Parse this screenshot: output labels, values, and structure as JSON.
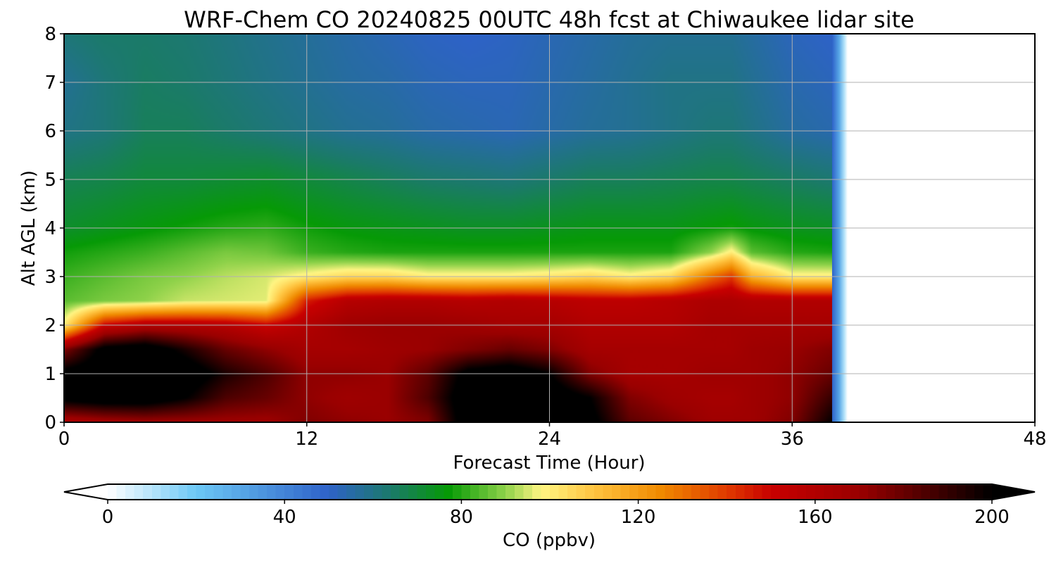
{
  "chart_data": {
    "type": "heatmap",
    "title": "WRF-Chem CO  20240825 00UTC 48h fcst at Chiwaukee lidar site",
    "xlabel": "Forecast Time (Hour)",
    "ylabel": "Alt AGL (km)",
    "xlim": [
      0,
      48
    ],
    "ylim": [
      0,
      8
    ],
    "xticks": [
      0,
      12,
      24,
      36,
      48
    ],
    "yticks": [
      0,
      1,
      2,
      3,
      4,
      5,
      6,
      7,
      8
    ],
    "grid": true,
    "data_end_hour": 38.6,
    "colorbar": {
      "label": "CO  (ppbv)",
      "min": 0,
      "max": 200,
      "ticks": [
        0,
        40,
        80,
        120,
        160,
        200
      ],
      "extend": "both",
      "colors": [
        {
          "v": 0,
          "c": "#ffffff"
        },
        {
          "v": 20,
          "c": "#6cc8f5"
        },
        {
          "v": 50,
          "c": "#2e62c8"
        },
        {
          "v": 64,
          "c": "#1b7a6a"
        },
        {
          "v": 77,
          "c": "#069a06"
        },
        {
          "v": 90,
          "c": "#8fd24a"
        },
        {
          "v": 98,
          "c": "#fff583"
        },
        {
          "v": 110,
          "c": "#ffc440"
        },
        {
          "v": 125,
          "c": "#f08a00"
        },
        {
          "v": 140,
          "c": "#e03a00"
        },
        {
          "v": 150,
          "c": "#c80000"
        },
        {
          "v": 170,
          "c": "#9a0000"
        },
        {
          "v": 200,
          "c": "#000000"
        }
      ]
    },
    "field": {
      "hours": [
        0,
        2,
        4,
        6,
        8,
        10,
        12,
        14,
        16,
        18,
        20,
        22,
        24,
        26,
        28,
        30,
        32,
        33,
        34,
        36,
        38
      ],
      "altitudes_km": [
        0,
        0.5,
        1,
        1.5,
        2,
        2.5,
        3,
        3.5,
        4,
        5,
        6,
        7,
        8
      ],
      "co_ppbv": [
        [
          160,
          165,
          168,
          168,
          168,
          168,
          175,
          172,
          170,
          175,
          210,
          210,
          210,
          205,
          182,
          175,
          168,
          168,
          168,
          175,
          200
        ],
        [
          205,
          210,
          210,
          200,
          185,
          180,
          172,
          168,
          170,
          185,
          210,
          210,
          210,
          200,
          175,
          168,
          165,
          165,
          168,
          172,
          190
        ],
        [
          205,
          210,
          210,
          210,
          195,
          185,
          172,
          172,
          170,
          182,
          205,
          210,
          200,
          175,
          165,
          165,
          168,
          168,
          168,
          172,
          180
        ],
        [
          175,
          205,
          210,
          195,
          180,
          172,
          165,
          165,
          168,
          170,
          175,
          180,
          175,
          165,
          165,
          165,
          165,
          165,
          168,
          170,
          175
        ],
        [
          100,
          150,
          160,
          160,
          158,
          150,
          160,
          168,
          170,
          170,
          168,
          165,
          165,
          160,
          160,
          160,
          165,
          165,
          165,
          165,
          165
        ],
        [
          85,
          88,
          90,
          94,
          95,
          96,
          145,
          158,
          160,
          160,
          158,
          160,
          158,
          155,
          155,
          158,
          162,
          162,
          160,
          160,
          160
        ],
        [
          82,
          85,
          88,
          90,
          93,
          95,
          100,
          105,
          105,
          100,
          100,
          100,
          102,
          105,
          100,
          105,
          130,
          140,
          115,
          100,
          100
        ],
        [
          78,
          80,
          82,
          85,
          88,
          87,
          82,
          80,
          79,
          79,
          79,
          79,
          79,
          79,
          79,
          79,
          90,
          100,
          85,
          80,
          79
        ],
        [
          72,
          74,
          76,
          78,
          80,
          81,
          78,
          76,
          75,
          74,
          73,
          73,
          74,
          75,
          75,
          75,
          77,
          78,
          76,
          74,
          73
        ],
        [
          67,
          68,
          70,
          70,
          71,
          72,
          70,
          68,
          66,
          64,
          63,
          62,
          64,
          66,
          66,
          67,
          68,
          68,
          67,
          65,
          63
        ],
        [
          60,
          62,
          66,
          66,
          64,
          62,
          60,
          58,
          57,
          55,
          54,
          53,
          55,
          57,
          58,
          60,
          62,
          62,
          60,
          56,
          54
        ],
        [
          58,
          62,
          65,
          64,
          62,
          60,
          58,
          56,
          55,
          53,
          52,
          52,
          54,
          56,
          58,
          60,
          60,
          60,
          58,
          54,
          52
        ],
        [
          62,
          64,
          64,
          63,
          61,
          59,
          57,
          55,
          53,
          51,
          50,
          51,
          53,
          55,
          57,
          58,
          58,
          58,
          56,
          52,
          50
        ]
      ]
    }
  }
}
